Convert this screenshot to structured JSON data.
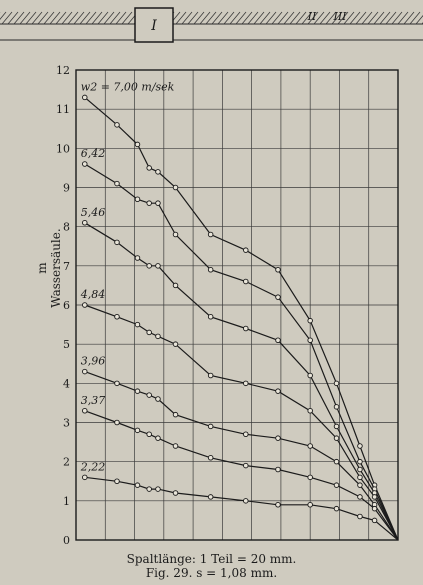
{
  "caption": {
    "line1": "Spaltlänge: 1 Teil = 20 mm.",
    "line2": "Fig. 29.   s = 1,08 mm."
  },
  "header": {
    "labels": [
      "I",
      "II",
      "III"
    ]
  },
  "chart_data": {
    "type": "line",
    "title": "",
    "xlabel": "",
    "ylabel": "m Wassersäule.",
    "xlim": [
      0,
      11
    ],
    "ylim": [
      0,
      12
    ],
    "yticks": [
      0,
      1,
      2,
      3,
      4,
      5,
      6,
      7,
      8,
      9,
      10,
      11,
      12
    ],
    "grid": true,
    "x": [
      0.3,
      1.4,
      2.1,
      2.5,
      2.8,
      3.4,
      4.6,
      5.8,
      6.9,
      8.0,
      8.9,
      9.7,
      10.2,
      11.0
    ],
    "series": [
      {
        "name": "w2 = 7,00 m/sek",
        "values": [
          11.3,
          10.6,
          10.1,
          9.5,
          9.4,
          9.0,
          7.8,
          7.4,
          6.9,
          5.6,
          4.0,
          2.4,
          1.4,
          0.0
        ]
      },
      {
        "name": "6,42",
        "values": [
          9.6,
          9.1,
          8.7,
          8.6,
          8.6,
          7.8,
          6.9,
          6.6,
          6.2,
          5.1,
          3.4,
          2.0,
          1.3,
          0.0
        ]
      },
      {
        "name": "5,46",
        "values": [
          8.1,
          7.6,
          7.2,
          7.0,
          7.0,
          6.5,
          5.7,
          5.4,
          5.1,
          4.2,
          2.9,
          1.8,
          1.2,
          0.0
        ]
      },
      {
        "name": "4,84",
        "values": [
          6.0,
          5.7,
          5.5,
          5.3,
          5.2,
          5.0,
          4.2,
          4.0,
          3.8,
          3.3,
          2.6,
          1.6,
          1.1,
          0.0
        ]
      },
      {
        "name": "3,96",
        "values": [
          4.3,
          4.0,
          3.8,
          3.7,
          3.6,
          3.2,
          2.9,
          2.7,
          2.6,
          2.4,
          2.0,
          1.4,
          0.9,
          0.0
        ]
      },
      {
        "name": "3,37",
        "values": [
          3.3,
          3.0,
          2.8,
          2.7,
          2.6,
          2.4,
          2.1,
          1.9,
          1.8,
          1.6,
          1.4,
          1.1,
          0.8,
          0.0
        ]
      },
      {
        "name": "2,22",
        "values": [
          1.6,
          1.5,
          1.4,
          1.3,
          1.3,
          1.2,
          1.1,
          1.0,
          0.9,
          0.9,
          0.8,
          0.6,
          0.5,
          0.0
        ]
      }
    ]
  }
}
